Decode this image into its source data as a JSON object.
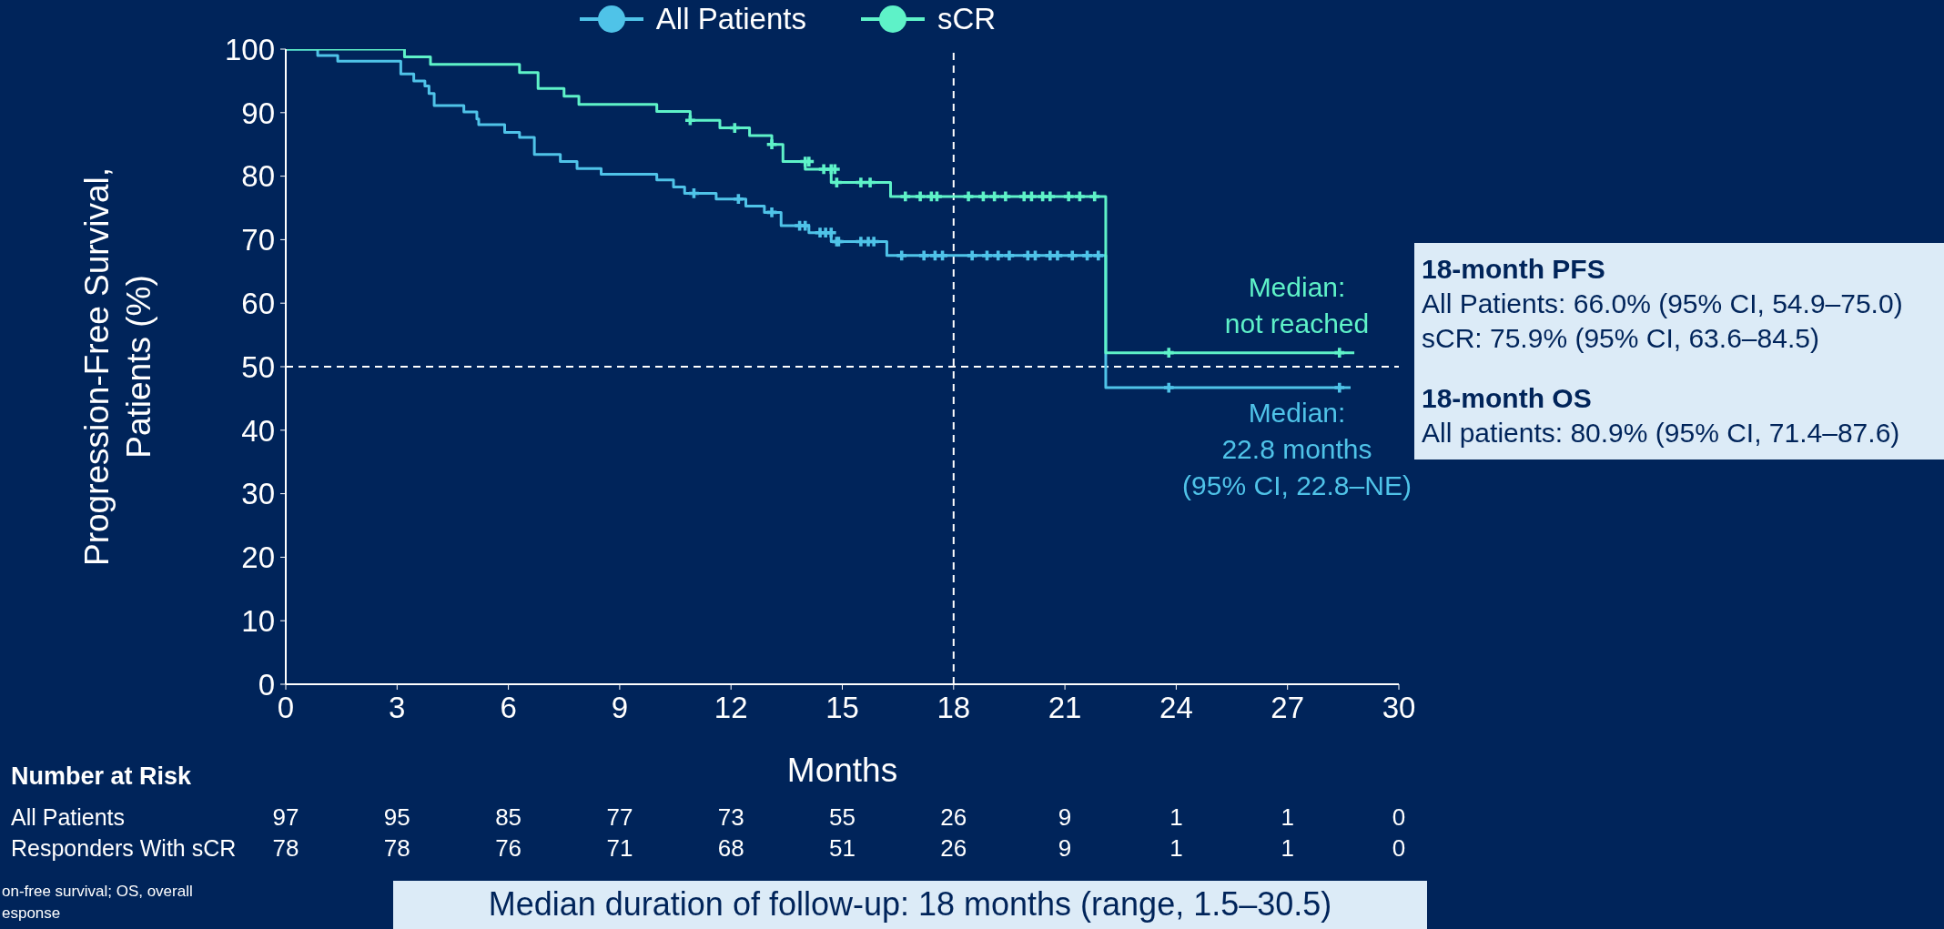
{
  "chart_data": {
    "type": "step",
    "xlabel": "Months",
    "ylabel": "Progression-Free Survival, Patients (%)",
    "xlim": [
      0,
      30
    ],
    "xticks": [
      0,
      3,
      6,
      9,
      12,
      15,
      18,
      21,
      24,
      27,
      30
    ],
    "ylim": [
      0,
      100
    ],
    "yticks": [
      0,
      10,
      20,
      30,
      40,
      50,
      60,
      70,
      80,
      90,
      100
    ],
    "legend": "top",
    "line_style": "solid",
    "series": [
      {
        "name": "All Patients",
        "color": "#4fc3e8",
        "x": [
          0,
          0.86,
          1.4,
          3.1,
          3.45,
          3.75,
          3.86,
          4.0,
          4.8,
          5.15,
          5.2,
          5.9,
          6.3,
          6.7,
          7.4,
          7.85,
          8.5,
          10.0,
          10.45,
          10.75,
          11.6,
          12.4,
          12.9,
          13.35,
          14.1,
          14.7,
          16.2,
          22.1,
          28.7
        ],
        "values": [
          100,
          99,
          98.1,
          96.1,
          95,
          94.2,
          93,
          91.1,
          90.1,
          89,
          88.1,
          86.9,
          86.1,
          83.4,
          82.3,
          81.2,
          80.3,
          79.4,
          78.3,
          77.3,
          76.4,
          75.3,
          74.3,
          72.2,
          71.1,
          69.7,
          67.5,
          46.7,
          46.7
        ]
      },
      {
        "name": "sCR",
        "color": "#5ef2c8",
        "x": [
          0,
          3.2,
          3.9,
          6.3,
          6.8,
          7.5,
          7.9,
          10.0,
          10.9,
          11.7,
          12.5,
          13.1,
          13.4,
          14.0,
          14.7,
          16.3,
          22.1,
          28.8
        ],
        "values": [
          100,
          98.8,
          97.6,
          96.3,
          93.8,
          92.6,
          91.3,
          90.2,
          88.8,
          87.6,
          86.4,
          85,
          82.3,
          81.1,
          79,
          76.8,
          52.2,
          52.2
        ]
      },
      {
        "type": "scatter",
        "marker": "cross",
        "color": "#4fc3e8",
        "x": [
          11.0,
          12.2,
          13.1,
          13.85,
          14.0,
          14.4,
          14.55,
          14.7,
          14.85,
          14.9,
          15.5,
          15.7,
          15.85,
          16.6,
          17.2,
          17.5,
          17.7,
          18.5,
          18.9,
          19.2,
          19.5,
          20.0,
          20.2,
          20.6,
          20.8,
          21.2,
          21.6,
          21.9,
          23.8,
          28.4
        ],
        "values": [
          77.3,
          76.4,
          74.3,
          72.2,
          72.2,
          71.1,
          71.1,
          71.1,
          69.7,
          69.7,
          69.7,
          69.7,
          69.7,
          67.5,
          67.5,
          67.5,
          67.5,
          67.5,
          67.5,
          67.5,
          67.5,
          67.5,
          67.5,
          67.5,
          67.5,
          67.5,
          67.5,
          67.5,
          46.7,
          46.7
        ]
      },
      {
        "type": "scatter",
        "marker": "cross",
        "color": "#5ef2c8",
        "x": [
          10.9,
          12.1,
          13.1,
          14.0,
          14.1,
          14.5,
          14.7,
          14.8,
          14.85,
          15.5,
          15.75,
          16.7,
          17.1,
          17.4,
          17.55,
          18.4,
          18.8,
          19.1,
          19.4,
          19.9,
          20.1,
          20.4,
          20.6,
          21.1,
          21.4,
          21.8,
          23.8,
          28.4
        ],
        "values": [
          88.8,
          87.6,
          85,
          82.3,
          82.3,
          81.1,
          81.1,
          81.1,
          79,
          79,
          79,
          76.8,
          76.8,
          76.8,
          76.8,
          76.8,
          76.8,
          76.8,
          76.8,
          76.8,
          76.8,
          76.8,
          76.8,
          76.8,
          76.8,
          76.8,
          52.2,
          52.2
        ]
      }
    ],
    "ref_lines": [
      {
        "axis": "y",
        "value": 50,
        "color": "#ffffff",
        "line_style": "dashed"
      },
      {
        "axis": "x",
        "value": 18,
        "color": "#ffffff",
        "line_style": "dashed"
      }
    ],
    "annotations": [
      "Median:\nnot reached",
      "Median:\n22.8 months\n(95% CI, 22.8–NE)",
      "18-month PFS",
      "All Patients: 66.0% (95% CI, 54.9–75.0)",
      "sCR: 75.9% (95% CI, 63.6–84.5)",
      "18-month OS",
      "All patients: 80.9% (95% CI, 71.4–87.6)",
      "Number at Risk",
      "All Patients",
      "Responders With sCR",
      "97",
      "95",
      "85",
      "77",
      "73",
      "55",
      "26",
      "9",
      "1",
      "1",
      "0",
      "78",
      "78",
      "76",
      "71",
      "68",
      "51",
      "26",
      "9",
      "1",
      "1",
      "0",
      "Median duration of follow-up: 18 months (range, 1.5–30.5)",
      "on-free survival; OS, overall",
      "esponse"
    ]
  }
}
